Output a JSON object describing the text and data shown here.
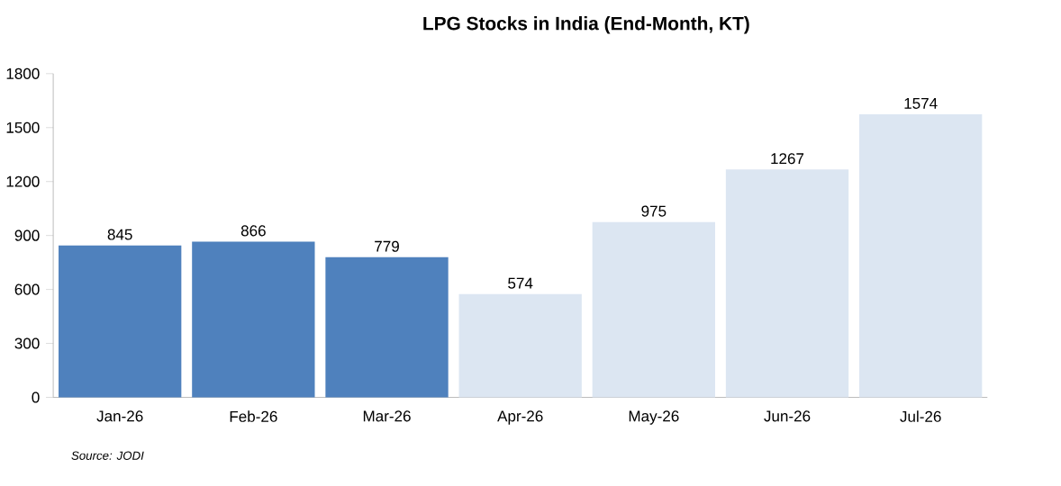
{
  "chart_data": {
    "type": "bar",
    "title": "LPG Stocks in India (End-Month, KT)",
    "categories": [
      "Jan-26",
      "Feb-26",
      "Mar-26",
      "Apr-26",
      "May-26",
      "Jun-26",
      "Jul-26"
    ],
    "values": [
      845,
      866,
      779,
      574,
      975,
      1267,
      1574
    ],
    "colors": [
      "#4f81bd",
      "#4f81bd",
      "#4f81bd",
      "#dce6f2",
      "#dce6f2",
      "#dce6f2",
      "#dce6f2"
    ],
    "ylim": [
      0,
      1800
    ],
    "yticks": [
      0,
      300,
      600,
      900,
      1200,
      1500,
      1800
    ],
    "grid": false,
    "data_labels": true,
    "annotations": [
      "Source: JODI"
    ]
  }
}
